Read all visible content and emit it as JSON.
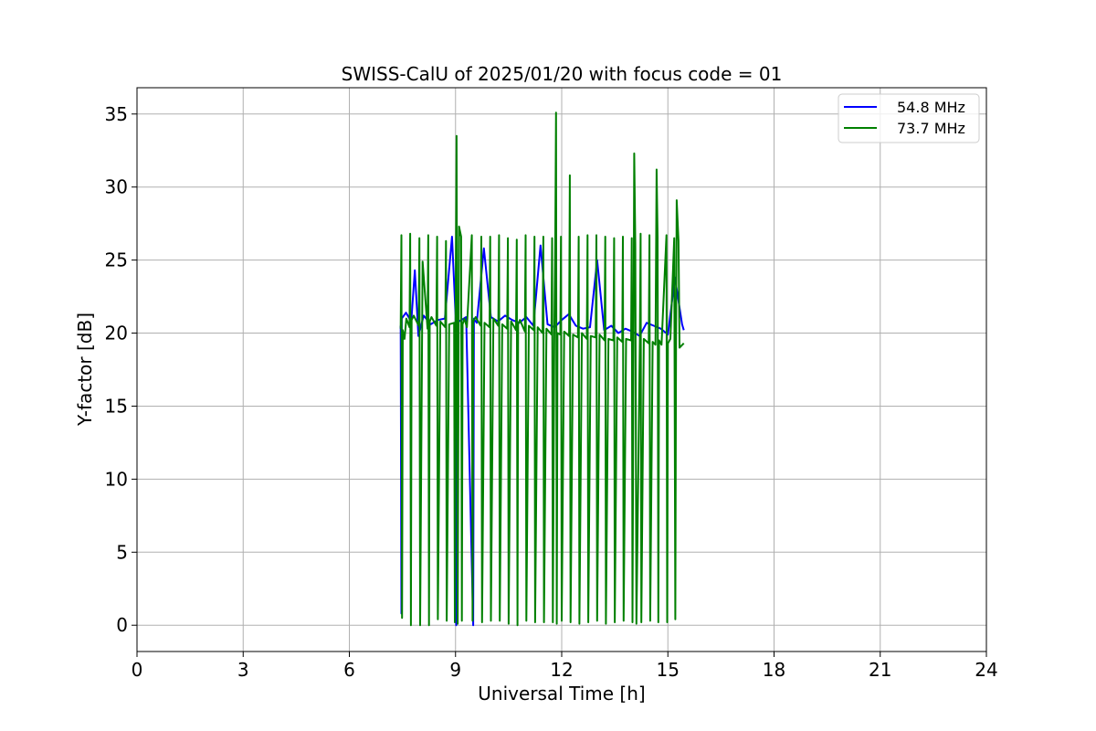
{
  "chart_data": {
    "type": "line",
    "title": "SWISS-CalU of 2025/01/20 with focus code = 01",
    "xlabel": "Universal Time [h]",
    "ylabel": "Y-factor [dB]",
    "xlim": [
      0,
      24
    ],
    "ylim": [
      -1.8,
      36.8
    ],
    "xticks": [
      0,
      3,
      6,
      9,
      12,
      15,
      18,
      21,
      24
    ],
    "yticks": [
      0,
      5,
      10,
      15,
      20,
      25,
      30,
      35
    ],
    "xtick_labels": [
      "0",
      "3",
      "6",
      "9",
      "12",
      "15",
      "18",
      "21",
      "24"
    ],
    "ytick_labels": [
      "0",
      "5",
      "10",
      "15",
      "20",
      "25",
      "30",
      "35"
    ],
    "grid": true,
    "legend_position": "upper-right",
    "series": [
      {
        "name": "54.8 MHz",
        "color": "#0000ff",
        "x": [
          7.45,
          7.47,
          7.48,
          7.6,
          7.75,
          7.85,
          7.95,
          8.1,
          8.3,
          8.5,
          8.7,
          8.9,
          9.0,
          9.02,
          9.04,
          9.1,
          9.3,
          9.5,
          9.52,
          9.54,
          9.6,
          9.8,
          10.0,
          10.2,
          10.4,
          10.6,
          10.8,
          11.0,
          11.2,
          11.4,
          11.6,
          11.8,
          12.0,
          12.2,
          12.4,
          12.6,
          12.8,
          13.0,
          13.2,
          13.4,
          13.6,
          13.8,
          14.0,
          14.2,
          14.4,
          14.6,
          14.8,
          15.0,
          15.2,
          15.4,
          15.45
        ],
        "y": [
          20.5,
          0.8,
          21.0,
          21.4,
          20.8,
          24.3,
          19.8,
          21.2,
          20.6,
          20.9,
          21.0,
          26.6,
          21.2,
          0.0,
          21.0,
          20.8,
          21.1,
          0.0,
          21.0,
          20.9,
          20.7,
          25.8,
          21.1,
          20.8,
          21.2,
          20.9,
          20.7,
          21.1,
          20.5,
          26.0,
          20.6,
          20.4,
          20.9,
          21.3,
          20.5,
          20.3,
          20.4,
          25.0,
          20.2,
          20.5,
          20.0,
          20.3,
          20.1,
          19.8,
          20.7,
          20.5,
          20.3,
          19.9,
          23.8,
          20.6,
          20.2
        ]
      },
      {
        "name": "73.7 MHz",
        "color": "#008000",
        "x": [
          7.45,
          7.47,
          7.49,
          7.51,
          7.56,
          7.61,
          7.7,
          7.72,
          7.74,
          7.76,
          7.82,
          7.96,
          7.98,
          8.0,
          8.07,
          8.21,
          8.23,
          8.25,
          8.27,
          8.32,
          8.46,
          8.48,
          8.5,
          8.57,
          8.71,
          8.73,
          8.75,
          8.82,
          8.96,
          8.98,
          9.0,
          9.03,
          9.06,
          9.1,
          9.16,
          9.18,
          9.2,
          9.25,
          9.32,
          9.46,
          9.48,
          9.5,
          9.57,
          9.71,
          9.73,
          9.75,
          9.82,
          9.96,
          9.98,
          10.0,
          10.07,
          10.21,
          10.23,
          10.25,
          10.32,
          10.46,
          10.48,
          10.5,
          10.57,
          10.71,
          10.73,
          10.75,
          10.77,
          10.82,
          10.96,
          10.98,
          11.0,
          11.07,
          11.21,
          11.23,
          11.25,
          11.32,
          11.46,
          11.48,
          11.5,
          11.57,
          11.71,
          11.73,
          11.75,
          11.79,
          11.82,
          11.84,
          11.86,
          11.88,
          11.96,
          11.98,
          12.0,
          12.07,
          12.21,
          12.23,
          12.25,
          12.32,
          12.46,
          12.48,
          12.5,
          12.57,
          12.71,
          12.73,
          12.75,
          12.82,
          12.96,
          12.98,
          13.0,
          13.07,
          13.21,
          13.23,
          13.25,
          13.32,
          13.46,
          13.48,
          13.5,
          13.57,
          13.71,
          13.73,
          13.75,
          13.82,
          13.96,
          13.98,
          14.0,
          14.05,
          14.08,
          14.11,
          14.21,
          14.23,
          14.25,
          14.32,
          14.46,
          14.48,
          14.5,
          14.57,
          14.65,
          14.68,
          14.71,
          14.73,
          14.75,
          14.82,
          14.96,
          14.98,
          15.0,
          15.07,
          15.18,
          15.21,
          15.23,
          15.25,
          15.3,
          15.33,
          15.45
        ],
        "y": [
          20.3,
          26.7,
          0.5,
          20.2,
          19.6,
          21.0,
          20.4,
          26.8,
          0.0,
          20.9,
          21.2,
          20.5,
          26.5,
          0.0,
          24.9,
          20.3,
          26.7,
          0.0,
          20.8,
          21.1,
          20.5,
          26.6,
          0.4,
          20.8,
          20.4,
          26.3,
          0.3,
          20.6,
          20.7,
          0.2,
          21.3,
          33.5,
          0.1,
          27.3,
          26.6,
          0.3,
          20.6,
          21.0,
          20.4,
          26.7,
          0.3,
          20.8,
          21.1,
          20.5,
          26.6,
          0.2,
          20.7,
          20.4,
          26.6,
          0.3,
          21.0,
          20.5,
          26.7,
          0.3,
          20.6,
          20.3,
          26.5,
          0.1,
          20.8,
          20.2,
          26.4,
          0.0,
          20.6,
          20.9,
          20.1,
          26.7,
          0.3,
          20.5,
          20.2,
          26.6,
          0.2,
          20.4,
          20.0,
          26.6,
          0.2,
          20.3,
          19.9,
          26.5,
          0.2,
          19.8,
          26.8,
          35.1,
          0.1,
          20.0,
          19.9,
          26.6,
          0.3,
          20.1,
          19.8,
          30.8,
          0.2,
          19.9,
          19.7,
          26.6,
          0.1,
          20.0,
          19.6,
          26.7,
          0.2,
          19.8,
          19.7,
          26.7,
          0.3,
          19.9,
          19.5,
          26.6,
          0.1,
          19.6,
          19.5,
          26.5,
          0.2,
          19.7,
          19.4,
          26.6,
          0.3,
          19.6,
          19.5,
          26.5,
          0.2,
          32.3,
          26.0,
          0.1,
          19.5,
          26.8,
          0.2,
          19.6,
          19.3,
          26.7,
          0.3,
          19.4,
          19.2,
          31.2,
          26.6,
          0.2,
          19.5,
          19.2,
          26.7,
          0.2,
          19.3,
          19.6,
          26.5,
          0.4,
          19.4,
          29.1,
          26.3,
          19.0,
          19.3
        ]
      }
    ]
  }
}
